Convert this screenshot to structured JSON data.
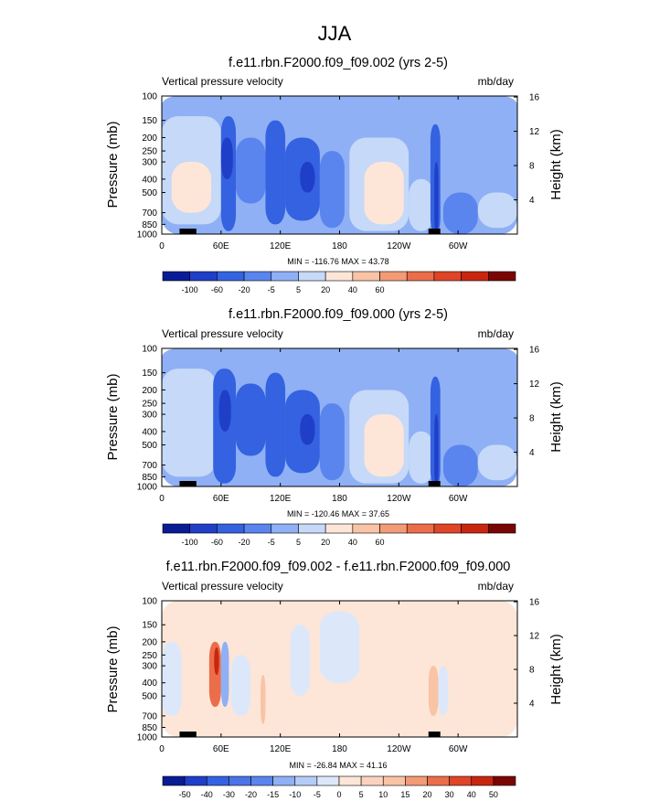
{
  "main_title": "JJA",
  "chart_data": [
    {
      "type": "heatmap",
      "title": "f.e11.rbn.F2000.f09_f09.002 (yrs 2-5)",
      "left_label": "Vertical pressure velocity",
      "units": "mb/day",
      "ylabel": "Pressure (mb)",
      "ylabel_right": "Height (km)",
      "x_ticks": [
        "0",
        "60E",
        "120E",
        "180",
        "120W",
        "60W"
      ],
      "x_tick_lon": [
        0,
        60,
        120,
        180,
        240,
        300
      ],
      "xlim": [
        0,
        360
      ],
      "y_ticks": [
        "100",
        "150",
        "200",
        "250",
        "300",
        "400",
        "500",
        "700",
        "850",
        "1000"
      ],
      "y_tick_values": [
        100,
        150,
        200,
        250,
        300,
        400,
        500,
        700,
        850,
        1000
      ],
      "y_log": true,
      "ylim": [
        1000,
        100
      ],
      "y_right_ticks": [
        "16",
        "12",
        "8",
        "4"
      ],
      "y_right_values": [
        16,
        12,
        8,
        4
      ],
      "stats": "MIN = -116.76  MAX =  43.78",
      "min": -116.76,
      "max": 43.78,
      "colorbar_labels": [
        "-100",
        "-60",
        "-20",
        "-5",
        "5",
        "20",
        "40",
        "60"
      ],
      "colorbar_colors": [
        "#0a1b96",
        "#1f3fc8",
        "#3462e0",
        "#5a85ee",
        "#8fb0f5",
        "#c6d9f8",
        "#fde6d8",
        "#f9c3a6",
        "#f39a76",
        "#eb6d4a",
        "#df4526",
        "#c8260f",
        "#7a0505"
      ],
      "ranges": [
        {
          "lon": [
            0,
            360
          ],
          "p": [
            100,
            1000
          ],
          "v": 4
        },
        {
          "lon": [
            0,
            360
          ],
          "p": [
            100,
            140
          ],
          "v": 2
        },
        {
          "lon": [
            0,
            60
          ],
          "p": [
            140,
            850
          ],
          "v": 8
        },
        {
          "lon": [
            10,
            50
          ],
          "p": [
            300,
            700
          ],
          "v": 20
        },
        {
          "lon": [
            60,
            75
          ],
          "p": [
            140,
            950
          ],
          "v": -60
        },
        {
          "lon": [
            60,
            72
          ],
          "p": [
            200,
            400
          ],
          "v": -100
        },
        {
          "lon": [
            75,
            105
          ],
          "p": [
            200,
            600
          ],
          "v": -20
        },
        {
          "lon": [
            105,
            125
          ],
          "p": [
            150,
            850
          ],
          "v": -40
        },
        {
          "lon": [
            125,
            160
          ],
          "p": [
            200,
            800
          ],
          "v": -60
        },
        {
          "lon": [
            140,
            155
          ],
          "p": [
            300,
            500
          ],
          "v": -100
        },
        {
          "lon": [
            160,
            185
          ],
          "p": [
            250,
            900
          ],
          "v": -20
        },
        {
          "lon": [
            150,
            180
          ],
          "p": [
            120,
            200
          ],
          "v": -5
        },
        {
          "lon": [
            190,
            250
          ],
          "p": [
            200,
            950
          ],
          "v": 10
        },
        {
          "lon": [
            205,
            245
          ],
          "p": [
            300,
            850
          ],
          "v": 20
        },
        {
          "lon": [
            250,
            275
          ],
          "p": [
            400,
            950
          ],
          "v": 15
        },
        {
          "lon": [
            272,
            282
          ],
          "p": [
            160,
            1000
          ],
          "v": -60
        },
        {
          "lon": [
            276,
            280
          ],
          "p": [
            300,
            1000
          ],
          "v": -100
        },
        {
          "lon": [
            285,
            320
          ],
          "p": [
            500,
            1000
          ],
          "v": -20
        },
        {
          "lon": [
            320,
            360
          ],
          "p": [
            500,
            900
          ],
          "v": 10
        },
        {
          "lon": [
            320,
            360
          ],
          "p": [
            120,
            500
          ],
          "v": 2
        }
      ]
    },
    {
      "type": "heatmap",
      "title": "f.e11.rbn.F2000.f09_f09.000 (yrs 2-5)",
      "left_label": "Vertical pressure velocity",
      "units": "mb/day",
      "ylabel": "Pressure (mb)",
      "ylabel_right": "Height (km)",
      "x_ticks": [
        "0",
        "60E",
        "120E",
        "180",
        "120W",
        "60W"
      ],
      "x_tick_lon": [
        0,
        60,
        120,
        180,
        240,
        300
      ],
      "xlim": [
        0,
        360
      ],
      "y_ticks": [
        "100",
        "150",
        "200",
        "250",
        "300",
        "400",
        "500",
        "700",
        "850",
        "1000"
      ],
      "y_tick_values": [
        100,
        150,
        200,
        250,
        300,
        400,
        500,
        700,
        850,
        1000
      ],
      "y_log": true,
      "ylim": [
        1000,
        100
      ],
      "y_right_ticks": [
        "16",
        "12",
        "8",
        "4"
      ],
      "y_right_values": [
        16,
        12,
        8,
        4
      ],
      "stats": "MIN = -120.46  MAX =  37.65",
      "min": -120.46,
      "max": 37.65,
      "colorbar_labels": [
        "-100",
        "-60",
        "-20",
        "-5",
        "5",
        "20",
        "40",
        "60"
      ],
      "colorbar_colors": [
        "#0a1b96",
        "#1f3fc8",
        "#3462e0",
        "#5a85ee",
        "#8fb0f5",
        "#c6d9f8",
        "#fde6d8",
        "#f9c3a6",
        "#f39a76",
        "#eb6d4a",
        "#df4526",
        "#c8260f",
        "#7a0505"
      ],
      "ranges": [
        {
          "lon": [
            0,
            360
          ],
          "p": [
            100,
            1000
          ],
          "v": 4
        },
        {
          "lon": [
            0,
            360
          ],
          "p": [
            100,
            140
          ],
          "v": 2
        },
        {
          "lon": [
            0,
            55
          ],
          "p": [
            140,
            850
          ],
          "v": 6
        },
        {
          "lon": [
            10,
            50
          ],
          "p": [
            350,
            700
          ],
          "v": 15
        },
        {
          "lon": [
            52,
            75
          ],
          "p": [
            140,
            950
          ],
          "v": -60
        },
        {
          "lon": [
            58,
            70
          ],
          "p": [
            200,
            400
          ],
          "v": -100
        },
        {
          "lon": [
            75,
            105
          ],
          "p": [
            180,
            600
          ],
          "v": -40
        },
        {
          "lon": [
            105,
            125
          ],
          "p": [
            150,
            850
          ],
          "v": -40
        },
        {
          "lon": [
            125,
            160
          ],
          "p": [
            200,
            800
          ],
          "v": -60
        },
        {
          "lon": [
            140,
            155
          ],
          "p": [
            300,
            500
          ],
          "v": -100
        },
        {
          "lon": [
            160,
            185
          ],
          "p": [
            250,
            900
          ],
          "v": -20
        },
        {
          "lon": [
            150,
            180
          ],
          "p": [
            120,
            200
          ],
          "v": -5
        },
        {
          "lon": [
            190,
            250
          ],
          "p": [
            200,
            950
          ],
          "v": 10
        },
        {
          "lon": [
            205,
            245
          ],
          "p": [
            300,
            850
          ],
          "v": 20
        },
        {
          "lon": [
            250,
            275
          ],
          "p": [
            400,
            950
          ],
          "v": 15
        },
        {
          "lon": [
            272,
            282
          ],
          "p": [
            160,
            1000
          ],
          "v": -60
        },
        {
          "lon": [
            276,
            280
          ],
          "p": [
            300,
            1000
          ],
          "v": -100
        },
        {
          "lon": [
            285,
            320
          ],
          "p": [
            500,
            1000
          ],
          "v": -20
        },
        {
          "lon": [
            320,
            360
          ],
          "p": [
            500,
            900
          ],
          "v": 10
        },
        {
          "lon": [
            320,
            360
          ],
          "p": [
            120,
            500
          ],
          "v": 2
        }
      ]
    },
    {
      "type": "heatmap",
      "title": "f.e11.rbn.F2000.f09_f09.002 - f.e11.rbn.F2000.f09_f09.000",
      "left_label": "Vertical pressure velocity",
      "units": "mb/day",
      "ylabel": "Pressure (mb)",
      "ylabel_right": "Height (km)",
      "x_ticks": [
        "0",
        "60E",
        "120E",
        "180",
        "120W",
        "60W"
      ],
      "x_tick_lon": [
        0,
        60,
        120,
        180,
        240,
        300
      ],
      "xlim": [
        0,
        360
      ],
      "y_ticks": [
        "100",
        "150",
        "200",
        "250",
        "300",
        "400",
        "500",
        "700",
        "850",
        "1000"
      ],
      "y_tick_values": [
        100,
        150,
        200,
        250,
        300,
        400,
        500,
        700,
        850,
        1000
      ],
      "y_log": true,
      "ylim": [
        1000,
        100
      ],
      "y_right_ticks": [
        "16",
        "12",
        "8",
        "4"
      ],
      "y_right_values": [
        16,
        12,
        8,
        4
      ],
      "stats": "MIN = -26.84  MAX =  41.16",
      "min": -26.84,
      "max": 41.16,
      "colorbar_labels": [
        "-50",
        "-40",
        "-30",
        "-20",
        "-15",
        "-10",
        "-5",
        "0",
        "5",
        "10",
        "15",
        "20",
        "30",
        "40",
        "50"
      ],
      "colorbar_colors": [
        "#0a1b96",
        "#1f3fc8",
        "#3462e0",
        "#4a74e8",
        "#5a85ee",
        "#8fb0f5",
        "#b5ccf7",
        "#dce8fa",
        "#fde6d8",
        "#fbd2bd",
        "#f9c3a6",
        "#f39a76",
        "#eb6d4a",
        "#df4526",
        "#c8260f",
        "#7a0505"
      ],
      "ranges": [
        {
          "lon": [
            0,
            360
          ],
          "p": [
            100,
            1000
          ],
          "v": 2
        },
        {
          "lon": [
            0,
            20
          ],
          "p": [
            200,
            700
          ],
          "v": -3
        },
        {
          "lon": [
            20,
            50
          ],
          "p": [
            150,
            900
          ],
          "v": 4
        },
        {
          "lon": [
            48,
            60
          ],
          "p": [
            200,
            600
          ],
          "v": 25
        },
        {
          "lon": [
            53,
            58
          ],
          "p": [
            220,
            350
          ],
          "v": 40
        },
        {
          "lon": [
            60,
            68
          ],
          "p": [
            200,
            600
          ],
          "v": -15
        },
        {
          "lon": [
            70,
            90
          ],
          "p": [
            250,
            700
          ],
          "v": -5
        },
        {
          "lon": [
            100,
            105
          ],
          "p": [
            350,
            800
          ],
          "v": 12
        },
        {
          "lon": [
            130,
            150
          ],
          "p": [
            150,
            500
          ],
          "v": -5
        },
        {
          "lon": [
            160,
            200
          ],
          "p": [
            120,
            400
          ],
          "v": -3
        },
        {
          "lon": [
            270,
            280
          ],
          "p": [
            300,
            700
          ],
          "v": 12
        },
        {
          "lon": [
            280,
            290
          ],
          "p": [
            300,
            700
          ],
          "v": -5
        }
      ]
    }
  ]
}
